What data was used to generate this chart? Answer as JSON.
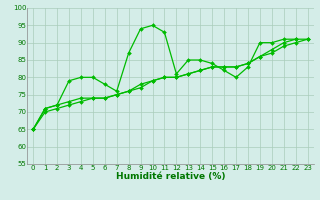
{
  "xlabel": "Humidité relative (%)",
  "x": [
    0,
    1,
    2,
    3,
    4,
    5,
    6,
    7,
    8,
    9,
    10,
    11,
    12,
    13,
    14,
    15,
    16,
    17,
    18,
    19,
    20,
    21,
    22,
    23
  ],
  "line1": [
    65,
    71,
    72,
    79,
    80,
    80,
    78,
    76,
    87,
    94,
    95,
    93,
    81,
    85,
    85,
    84,
    82,
    80,
    83,
    90,
    90,
    91,
    91,
    null
  ],
  "line2": [
    65,
    71,
    72,
    73,
    74,
    74,
    74,
    75,
    76,
    78,
    79,
    80,
    80,
    81,
    82,
    83,
    83,
    83,
    84,
    86,
    87,
    89,
    90,
    91
  ],
  "line3": [
    65,
    70,
    71,
    72,
    73,
    74,
    74,
    75,
    76,
    77,
    79,
    80,
    80,
    81,
    82,
    83,
    83,
    83,
    84,
    86,
    88,
    90,
    91,
    91
  ],
  "ylim": [
    55,
    100
  ],
  "xlim": [
    -0.5,
    23.5
  ],
  "yticks": [
    55,
    60,
    65,
    70,
    75,
    80,
    85,
    90,
    95,
    100
  ],
  "xticks": [
    0,
    1,
    2,
    3,
    4,
    5,
    6,
    7,
    8,
    9,
    10,
    11,
    12,
    13,
    14,
    15,
    16,
    17,
    18,
    19,
    20,
    21,
    22,
    23
  ],
  "line_color": "#00bb00",
  "bg_color": "#d4ede8",
  "grid_color": "#aaccbb",
  "marker": "D",
  "markersize": 2.0,
  "linewidth": 0.9,
  "xlabel_color": "#007700",
  "tick_color": "#007700",
  "xlabel_fontsize": 6.5,
  "tick_fontsize": 5.0
}
